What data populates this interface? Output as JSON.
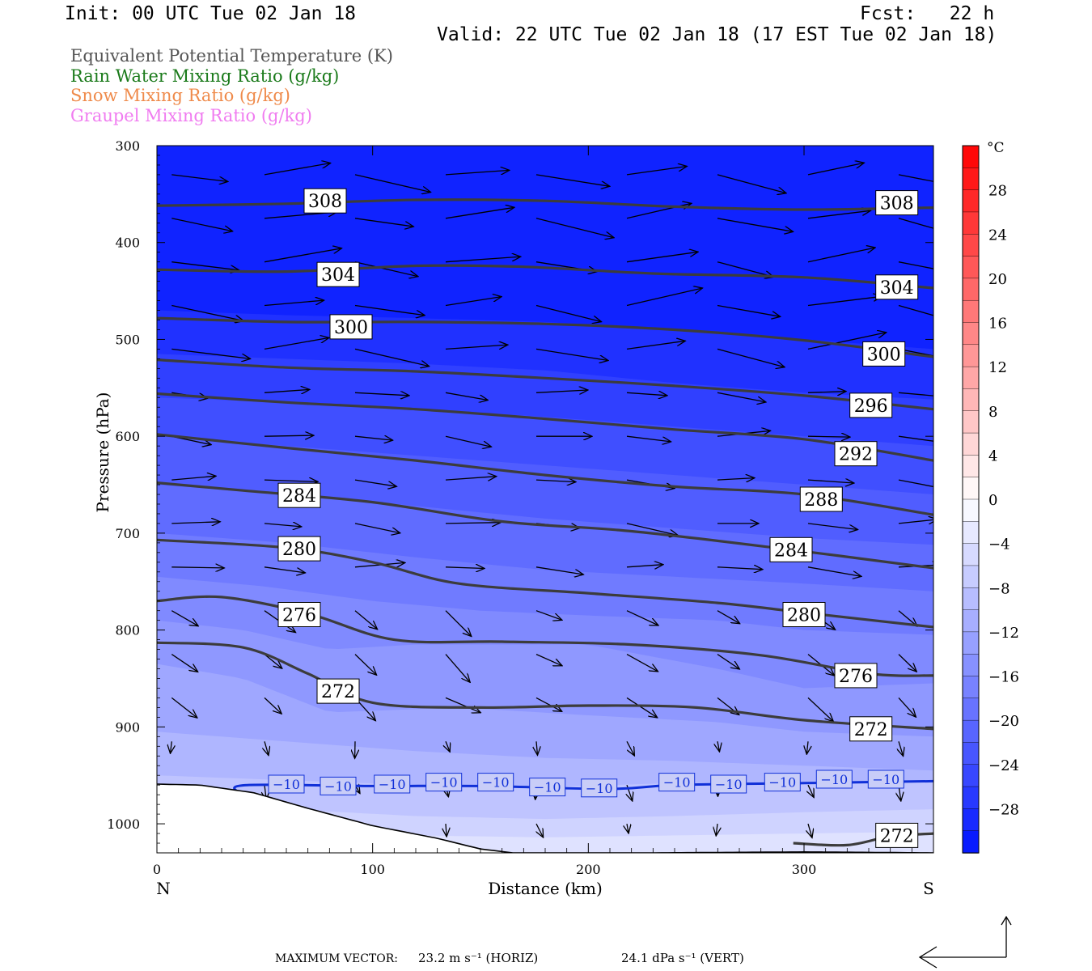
{
  "header": {
    "init": "Init: 00 UTC Tue 02 Jan 18",
    "fcst": "Fcst:   22 h",
    "valid": "Valid: 22 UTC Tue 02 Jan 18 (17 EST Tue 02 Jan 18)"
  },
  "legend": [
    {
      "label": "Equivalent Potential Temperature (K)",
      "color": "#555555"
    },
    {
      "label": "Rain Water Mixing Ratio (g/kg)",
      "color": "#1a7a1a"
    },
    {
      "label": "Snow Mixing Ratio (g/kg)",
      "color": "#ef8a4a"
    },
    {
      "label": "Graupel Mixing Ratio (g/kg)",
      "color": "#f07cf0"
    }
  ],
  "footer": {
    "max_vector_label": "MAXIMUM VECTOR:",
    "horiz": "23.2 m s⁻¹ (HORIZ)",
    "vert": "24.1 dPa s⁻¹ (VERT)"
  },
  "chart_data": {
    "type": "heatmap",
    "xlabel": "Distance (km)",
    "ylabel": "Pressure (hPa)",
    "xlim": [
      0,
      360
    ],
    "ylim": [
      1030,
      300
    ],
    "x_ticks": [
      0,
      100,
      200,
      300
    ],
    "y_ticks": [
      300,
      400,
      500,
      600,
      700,
      800,
      900,
      1000
    ],
    "x_end_labels": {
      "left": "N",
      "right": "S"
    },
    "colorbar": {
      "unit": "°C",
      "tick_labels": [
        "28",
        "24",
        "20",
        "16",
        "12",
        "8",
        "4",
        "0",
        "−4",
        "−8",
        "−12",
        "−16",
        "−20",
        "−24",
        "−28"
      ],
      "range": [
        -32,
        32
      ],
      "step": 2
    },
    "theta_e_contours": [
      {
        "label": "308",
        "points": [
          [
            0,
            362
          ],
          [
            60,
            360
          ],
          [
            120,
            356
          ],
          [
            180,
            357
          ],
          [
            240,
            363
          ],
          [
            300,
            366
          ],
          [
            360,
            364
          ]
        ],
        "label_positions": [
          [
            78,
            357
          ],
          [
            343,
            359
          ]
        ]
      },
      {
        "label": "304",
        "points": [
          [
            0,
            428
          ],
          [
            60,
            430
          ],
          [
            120,
            424
          ],
          [
            170,
            425
          ],
          [
            230,
            432
          ],
          [
            300,
            436
          ],
          [
            360,
            447
          ]
        ],
        "label_positions": [
          [
            84,
            433
          ],
          [
            343,
            446
          ]
        ]
      },
      {
        "label": "300",
        "points": [
          [
            0,
            478
          ],
          [
            60,
            482
          ],
          [
            120,
            482
          ],
          [
            180,
            484
          ],
          [
            240,
            490
          ],
          [
            300,
            501
          ],
          [
            360,
            518
          ]
        ],
        "label_positions": [
          [
            90,
            487
          ],
          [
            337,
            515
          ]
        ]
      },
      {
        "label": "296",
        "points": [
          [
            0,
            521
          ],
          [
            60,
            529
          ],
          [
            120,
            533
          ],
          [
            180,
            540
          ],
          [
            240,
            548
          ],
          [
            300,
            558
          ],
          [
            360,
            572
          ]
        ],
        "label_positions": [
          [
            331,
            568
          ]
        ]
      },
      {
        "label": "292",
        "points": [
          [
            0,
            556
          ],
          [
            60,
            565
          ],
          [
            120,
            572
          ],
          [
            180,
            582
          ],
          [
            240,
            593
          ],
          [
            300,
            603
          ],
          [
            360,
            625
          ]
        ],
        "label_positions": [
          [
            324,
            618
          ]
        ]
      },
      {
        "label": "288",
        "points": [
          [
            0,
            598
          ],
          [
            60,
            612
          ],
          [
            120,
            625
          ],
          [
            180,
            640
          ],
          [
            240,
            652
          ],
          [
            300,
            660
          ],
          [
            360,
            681
          ]
        ],
        "label_positions": [
          [
            308,
            665
          ]
        ]
      },
      {
        "label": "284",
        "points": [
          [
            0,
            648
          ],
          [
            40,
            656
          ],
          [
            100,
            668
          ],
          [
            160,
            688
          ],
          [
            220,
            698
          ],
          [
            290,
            716
          ],
          [
            360,
            736
          ]
        ],
        "label_positions": [
          [
            66,
            661
          ],
          [
            294,
            717
          ]
        ]
      },
      {
        "label": "280",
        "points": [
          [
            0,
            707
          ],
          [
            60,
            715
          ],
          [
            100,
            730
          ],
          [
            140,
            752
          ],
          [
            200,
            762
          ],
          [
            260,
            772
          ],
          [
            300,
            782
          ],
          [
            360,
            797
          ]
        ],
        "label_positions": [
          [
            66,
            716
          ],
          [
            300,
            784
          ]
        ]
      },
      {
        "label": "276",
        "points": [
          [
            0,
            770
          ],
          [
            30,
            766
          ],
          [
            70,
            783
          ],
          [
            110,
            810
          ],
          [
            160,
            812
          ],
          [
            220,
            815
          ],
          [
            280,
            826
          ],
          [
            330,
            845
          ],
          [
            360,
            847
          ]
        ],
        "label_positions": [
          [
            66,
            784
          ],
          [
            324,
            847
          ]
        ]
      },
      {
        "label": "272",
        "points": [
          [
            0,
            813
          ],
          [
            40,
            818
          ],
          [
            70,
            845
          ],
          [
            100,
            875
          ],
          [
            150,
            880
          ],
          [
            200,
            878
          ],
          [
            250,
            880
          ],
          [
            300,
            893
          ],
          [
            360,
            902
          ]
        ],
        "label_positions": [
          [
            84,
            863
          ],
          [
            331,
            902
          ]
        ]
      },
      {
        "label": "272",
        "points": [
          [
            295,
            1020
          ],
          [
            320,
            1022
          ],
          [
            340,
            1013
          ],
          [
            360,
            1010
          ]
        ],
        "label_positions": [
          [
            343,
            1012
          ]
        ]
      }
    ],
    "temperature_contour_minus10": {
      "label": "−10",
      "points": [
        [
          37,
          967
        ],
        [
          42,
          960
        ],
        [
          100,
          961
        ],
        [
          150,
          961
        ],
        [
          210,
          964
        ],
        [
          240,
          960
        ],
        [
          300,
          958
        ],
        [
          360,
          956
        ]
      ],
      "label_positions": [
        [
          60,
          959
        ],
        [
          84,
          961
        ],
        [
          109,
          959
        ],
        [
          133,
          957
        ],
        [
          157,
          957
        ],
        [
          181,
          962
        ],
        [
          205,
          963
        ],
        [
          241,
          957
        ],
        [
          265,
          959
        ],
        [
          290,
          957
        ],
        [
          314,
          954
        ],
        [
          338,
          954
        ]
      ]
    },
    "terrain_surface": {
      "points": [
        [
          0,
          959
        ],
        [
          20,
          960
        ],
        [
          45,
          968
        ],
        [
          70,
          984
        ],
        [
          100,
          1002
        ],
        [
          130,
          1015
        ],
        [
          150,
          1026
        ],
        [
          165,
          1030
        ],
        [
          200,
          1030
        ],
        [
          230,
          1030
        ],
        [
          300,
          1029
        ],
        [
          360,
          1030
        ]
      ]
    }
  }
}
